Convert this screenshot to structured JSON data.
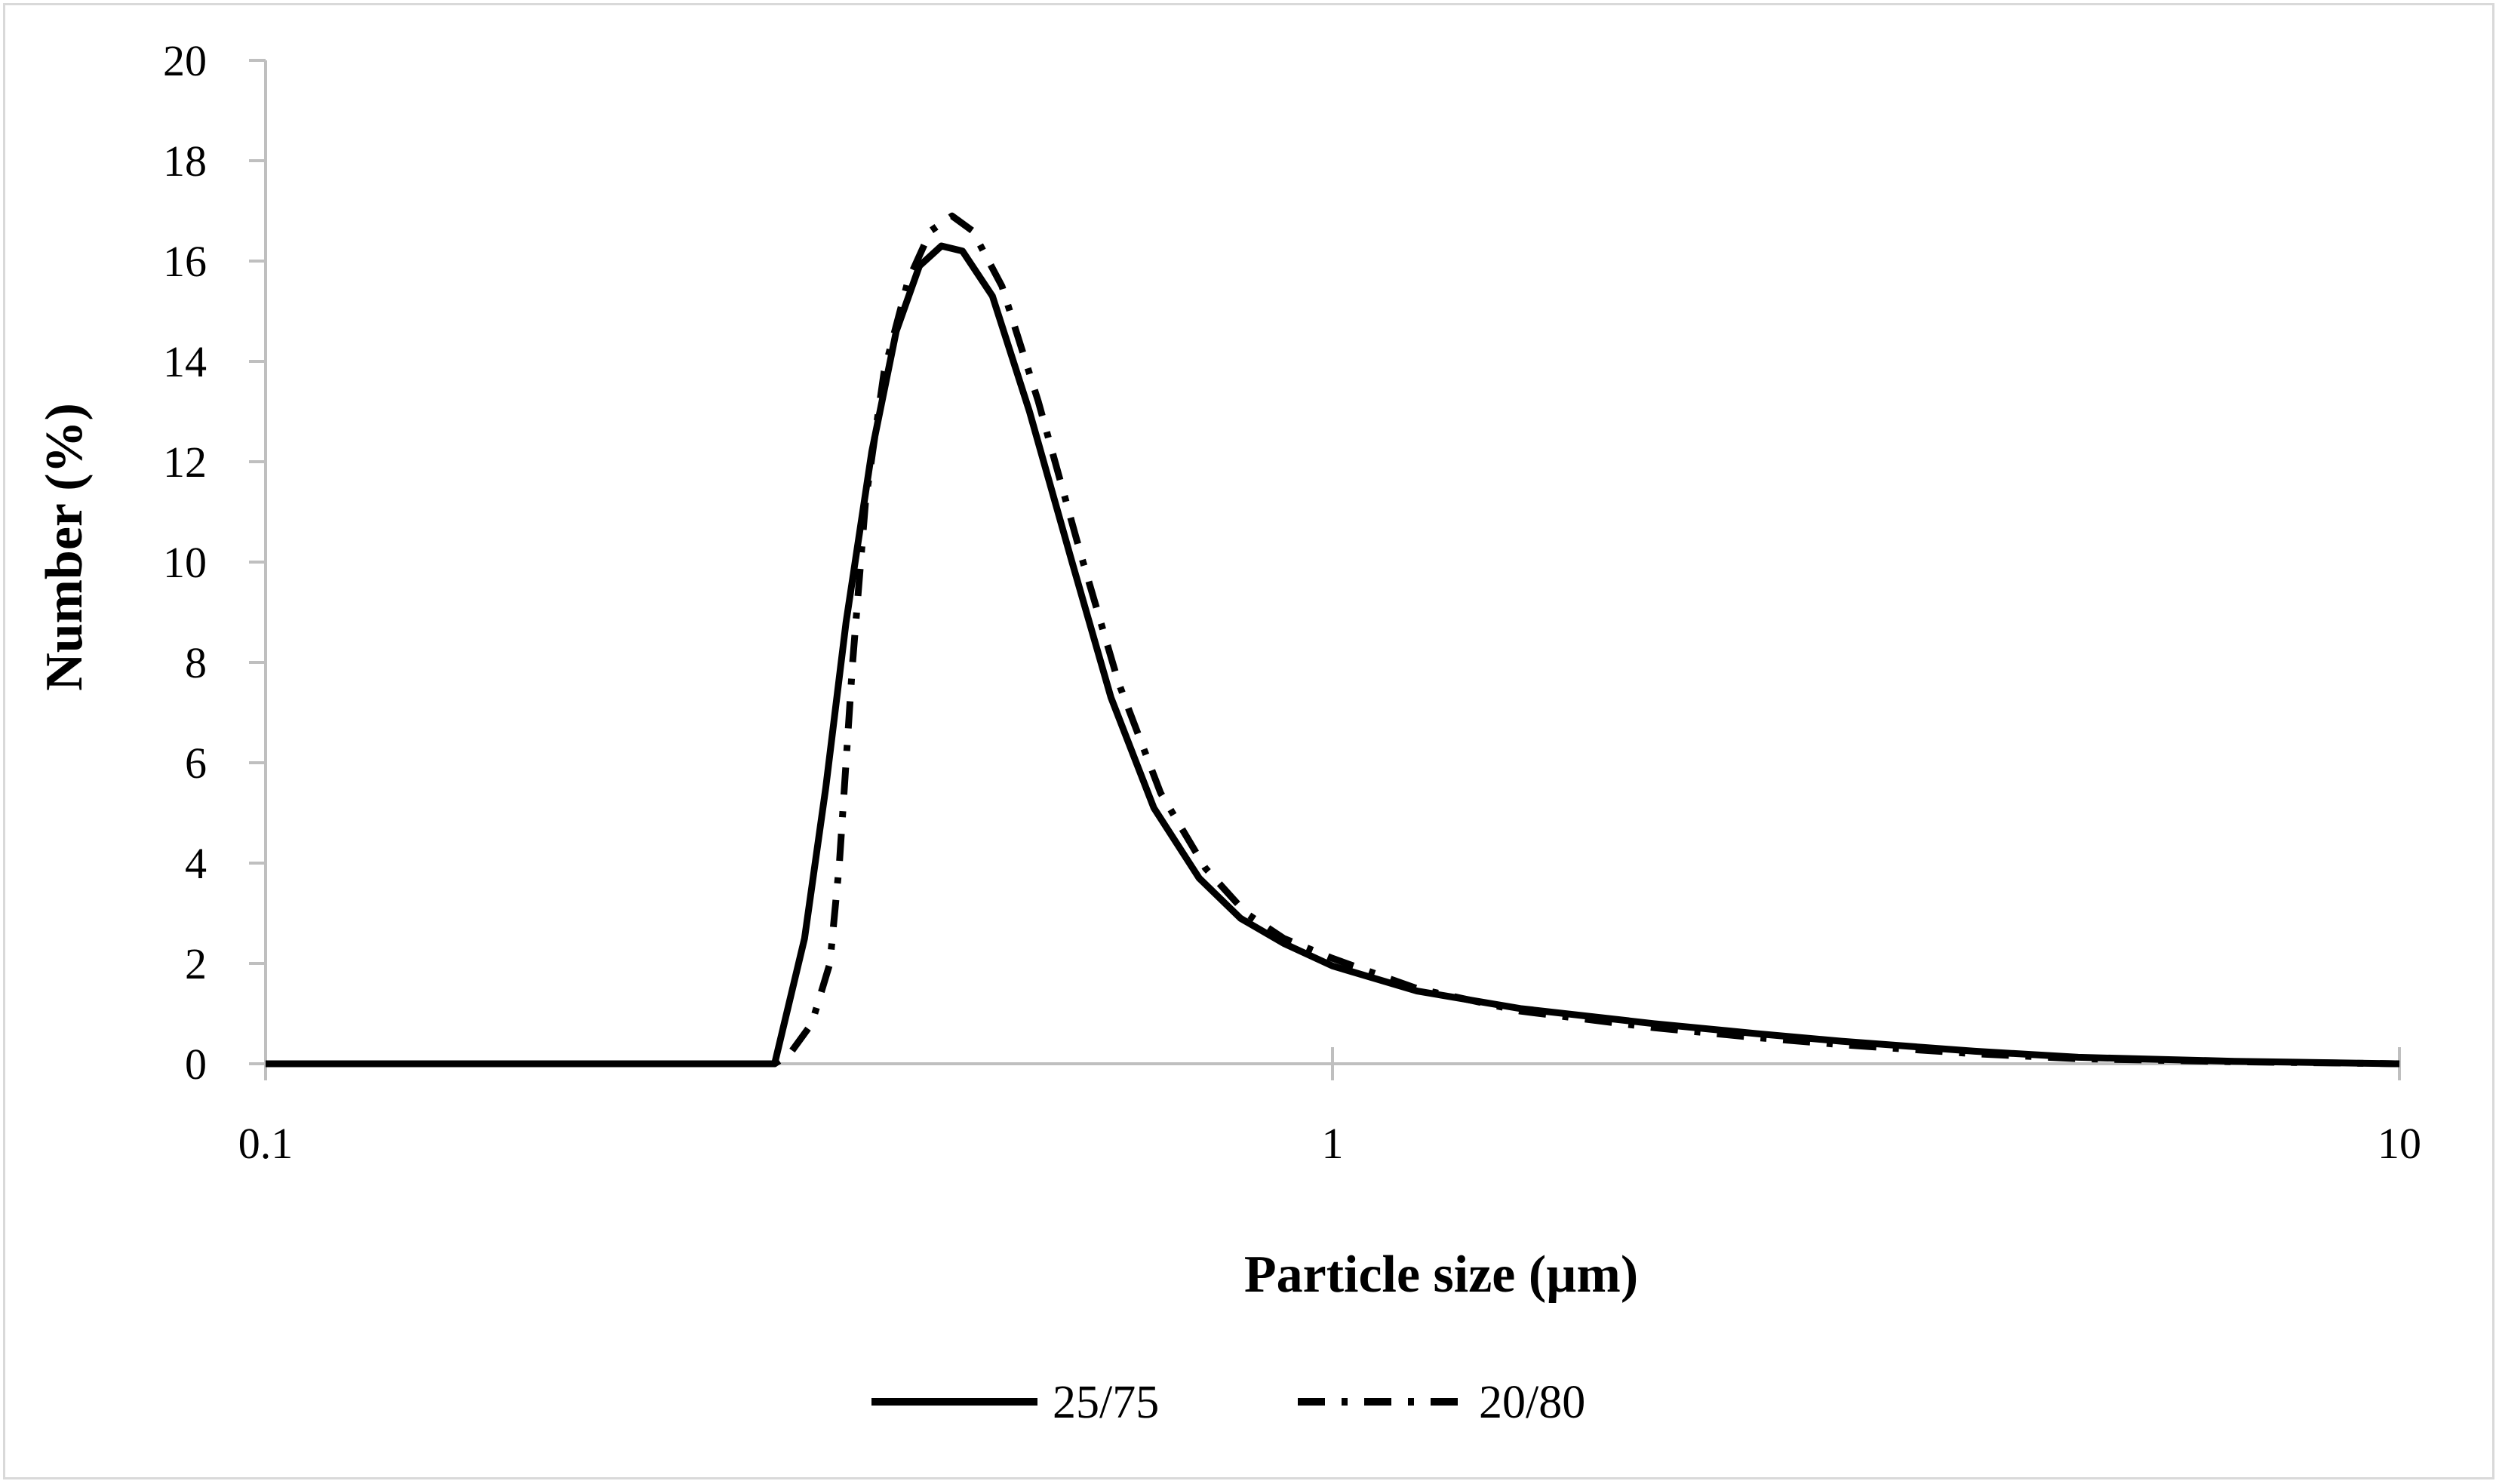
{
  "chart_data": {
    "type": "line",
    "xlabel": "Particle size (µm)",
    "ylabel": "Number (%)",
    "x_scale": "log",
    "xlim": [
      0.1,
      10
    ],
    "ylim": [
      0,
      20
    ],
    "x_ticks": [
      0.1,
      1,
      10
    ],
    "x_tick_labels": [
      "0.1",
      "1",
      "10"
    ],
    "y_ticks": [
      0,
      2,
      4,
      6,
      8,
      10,
      12,
      14,
      16,
      18,
      20
    ],
    "y_tick_labels": [
      "0",
      "2",
      "4",
      "6",
      "8",
      "10",
      "12",
      "14",
      "16",
      "18",
      "20"
    ],
    "grid": false,
    "legend_position": "bottom",
    "series": [
      {
        "name": "25/75",
        "style": "solid",
        "color": "#000000",
        "points": [
          [
            0.1,
            0
          ],
          [
            0.27,
            0
          ],
          [
            0.3,
            0
          ],
          [
            0.32,
            2.5
          ],
          [
            0.335,
            5.5
          ],
          [
            0.35,
            8.8
          ],
          [
            0.37,
            12.2
          ],
          [
            0.39,
            14.6
          ],
          [
            0.41,
            15.9
          ],
          [
            0.43,
            16.3
          ],
          [
            0.45,
            16.2
          ],
          [
            0.48,
            15.3
          ],
          [
            0.52,
            13.0
          ],
          [
            0.57,
            10.0
          ],
          [
            0.62,
            7.3
          ],
          [
            0.68,
            5.1
          ],
          [
            0.75,
            3.7
          ],
          [
            0.82,
            2.9
          ],
          [
            0.9,
            2.4
          ],
          [
            1.0,
            1.95
          ],
          [
            1.2,
            1.45
          ],
          [
            1.5,
            1.1
          ],
          [
            2.0,
            0.8
          ],
          [
            2.5,
            0.6
          ],
          [
            3.0,
            0.45
          ],
          [
            4.0,
            0.25
          ],
          [
            5.0,
            0.13
          ],
          [
            7.0,
            0.05
          ],
          [
            10.0,
            0.0
          ]
        ]
      },
      {
        "name": "20/80",
        "style": "dashdot",
        "color": "#000000",
        "points": [
          [
            0.1,
            0
          ],
          [
            0.3,
            0
          ],
          [
            0.31,
            0.2
          ],
          [
            0.325,
            0.8
          ],
          [
            0.338,
            2.0
          ],
          [
            0.345,
            4.0
          ],
          [
            0.355,
            8.0
          ],
          [
            0.365,
            11.2
          ],
          [
            0.38,
            13.8
          ],
          [
            0.4,
            15.6
          ],
          [
            0.42,
            16.6
          ],
          [
            0.44,
            16.9
          ],
          [
            0.46,
            16.6
          ],
          [
            0.49,
            15.5
          ],
          [
            0.53,
            13.2
          ],
          [
            0.58,
            10.2
          ],
          [
            0.63,
            7.6
          ],
          [
            0.69,
            5.4
          ],
          [
            0.76,
            3.9
          ],
          [
            0.83,
            3.0
          ],
          [
            0.9,
            2.5
          ],
          [
            1.0,
            2.1
          ],
          [
            1.2,
            1.5
          ],
          [
            1.5,
            1.05
          ],
          [
            2.0,
            0.72
          ],
          [
            2.5,
            0.52
          ],
          [
            3.0,
            0.38
          ],
          [
            4.0,
            0.2
          ],
          [
            5.0,
            0.1
          ],
          [
            7.0,
            0.04
          ],
          [
            10.0,
            0.0
          ]
        ]
      }
    ]
  }
}
